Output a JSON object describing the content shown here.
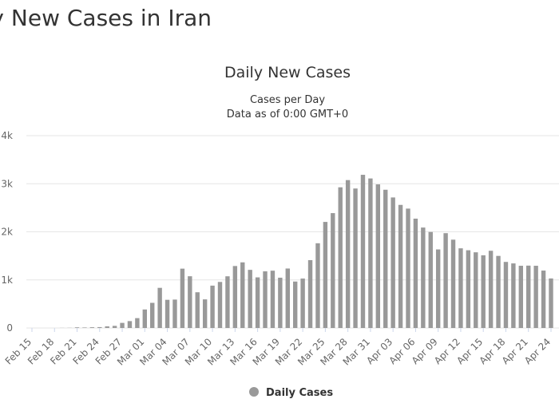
{
  "page_title": "Daily New Cases in Iran",
  "chart_data": {
    "type": "bar",
    "title": "Daily New Cases",
    "subtitle": [
      "Cases per Day",
      "Data as of 0:00 GMT+0"
    ],
    "categories": [
      "Feb 15",
      null,
      null,
      "Feb 18",
      null,
      null,
      "Feb 21",
      null,
      null,
      "Feb 24",
      null,
      null,
      "Feb 27",
      null,
      null,
      "Mar 01",
      null,
      null,
      "Mar 04",
      null,
      null,
      "Mar 07",
      null,
      null,
      "Mar 10",
      null,
      null,
      "Mar 13",
      null,
      null,
      "Mar 16",
      null,
      null,
      "Mar 19",
      null,
      null,
      "Mar 22",
      null,
      null,
      "Mar 25",
      null,
      null,
      "Mar 28",
      null,
      null,
      "Mar 31",
      null,
      null,
      "Apr 03",
      null,
      null,
      "Apr 06",
      null,
      null,
      "Apr 09",
      null,
      null,
      "Apr 12",
      null,
      null,
      "Apr 15",
      null,
      null,
      "Apr 18",
      null,
      null,
      "Apr 21",
      null,
      null,
      "Apr 24"
    ],
    "series": [
      {
        "name": "Daily Cases",
        "color": "#999999",
        "values": [
          0,
          0,
          0,
          0,
          2,
          3,
          13,
          10,
          15,
          18,
          34,
          44,
          106,
          143,
          205,
          385,
          523,
          835,
          586,
          591,
          1234,
          1076,
          743,
          595,
          881,
          958,
          1075,
          1289,
          1365,
          1209,
          1053,
          1178,
          1192,
          1046,
          1237,
          966,
          1028,
          1411,
          1762,
          2206,
          2389,
          2926,
          3076,
          2901,
          3186,
          3110,
          2987,
          2875,
          2715,
          2560,
          2483,
          2274,
          2089,
          1997,
          1634,
          1972,
          1837,
          1657,
          1617,
          1574,
          1512,
          1606,
          1499,
          1374,
          1343,
          1294,
          1297,
          1294,
          1194,
          1030
        ]
      }
    ],
    "ylim": [
      0,
      4000
    ],
    "yticks": [
      0,
      {
        "value": 1000,
        "label": "1k"
      },
      {
        "value": 2000,
        "label": "2k"
      },
      {
        "value": 3000,
        "label": "3k"
      },
      {
        "value": 4000,
        "label": "4k"
      }
    ],
    "grid": true,
    "legend": "bottom"
  }
}
